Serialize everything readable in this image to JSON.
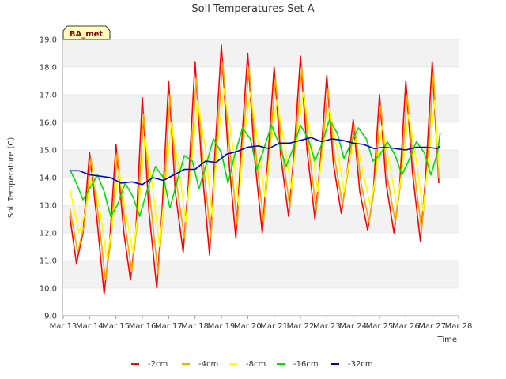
{
  "chart_data": {
    "type": "line",
    "title": "Soil Temperatures Set A",
    "xlabel": "Time",
    "ylabel": "Soil Temperature (C)",
    "ylim": [
      9.0,
      19.0
    ],
    "yticks": [
      "9.0",
      "10.0",
      "11.0",
      "12.0",
      "13.0",
      "14.0",
      "15.0",
      "16.0",
      "17.0",
      "18.0",
      "19.0"
    ],
    "xlim": [
      13,
      28
    ],
    "xticks": [
      "Mar 13",
      "Mar 14",
      "Mar 15",
      "Mar 16",
      "Mar 17",
      "Mar 18",
      "Mar 19",
      "Mar 20",
      "Mar 21",
      "Mar 22",
      "Mar 23",
      "Mar 24",
      "Mar 25",
      "Mar 26",
      "Mar 27",
      "Mar 28"
    ],
    "badge": "BA_met",
    "grid": true,
    "legend_position": "bottom",
    "series": [
      {
        "name": "-2cm",
        "color": "#ff0000",
        "x": [
          13.25,
          13.5,
          13.75,
          14.0,
          14.3,
          14.55,
          14.75,
          15.0,
          15.3,
          15.55,
          15.75,
          16.0,
          16.25,
          16.55,
          16.75,
          17.0,
          17.25,
          17.55,
          17.75,
          18.0,
          18.25,
          18.55,
          18.75,
          19.0,
          19.25,
          19.55,
          19.75,
          20.0,
          20.25,
          20.55,
          20.75,
          21.0,
          21.25,
          21.55,
          21.75,
          22.0,
          22.25,
          22.55,
          22.75,
          23.0,
          23.25,
          23.55,
          23.75,
          24.0,
          24.25,
          24.55,
          24.75,
          25.0,
          25.25,
          25.55,
          25.75,
          26.0,
          26.25,
          26.55,
          26.75,
          27.0,
          27.25
        ],
        "y": [
          12.6,
          10.9,
          12.0,
          14.9,
          12.3,
          9.8,
          11.5,
          15.2,
          12.0,
          10.3,
          12.0,
          16.9,
          12.8,
          10.0,
          12.8,
          17.5,
          13.5,
          11.3,
          13.8,
          18.2,
          14.5,
          11.2,
          14.8,
          18.8,
          15.0,
          11.8,
          15.0,
          18.5,
          14.8,
          12.0,
          14.5,
          18.0,
          14.8,
          12.6,
          14.8,
          18.4,
          15.0,
          12.5,
          14.5,
          17.7,
          14.5,
          12.7,
          14.0,
          16.1,
          13.5,
          12.1,
          13.3,
          17.0,
          13.8,
          12.0,
          13.5,
          17.5,
          14.2,
          11.7,
          14.0,
          18.2,
          13.8
        ]
      },
      {
        "name": "-4cm",
        "color": "#ffa500",
        "x": [
          13.25,
          13.55,
          13.8,
          14.05,
          14.35,
          14.6,
          14.8,
          15.05,
          15.35,
          15.6,
          15.8,
          16.05,
          16.3,
          16.6,
          16.8,
          17.05,
          17.3,
          17.6,
          17.8,
          18.05,
          18.3,
          18.6,
          18.8,
          19.05,
          19.3,
          19.6,
          19.8,
          20.05,
          20.3,
          20.6,
          20.8,
          21.05,
          21.3,
          21.6,
          21.8,
          22.05,
          22.3,
          22.6,
          22.8,
          23.05,
          23.3,
          23.6,
          23.8,
          24.05,
          24.3,
          24.6,
          24.8,
          25.05,
          25.3,
          25.6,
          25.8,
          26.05,
          26.3,
          26.6,
          26.8,
          27.05,
          27.25
        ],
        "y": [
          12.9,
          11.3,
          12.3,
          14.7,
          12.5,
          10.3,
          11.7,
          14.9,
          12.3,
          10.6,
          12.3,
          16.3,
          13.2,
          10.5,
          13.0,
          17.0,
          13.8,
          11.8,
          14.0,
          17.6,
          14.6,
          11.8,
          15.0,
          18.2,
          15.2,
          12.3,
          15.2,
          18.0,
          15.0,
          12.4,
          14.6,
          17.6,
          15.0,
          12.9,
          15.0,
          18.0,
          15.2,
          12.8,
          14.8,
          17.2,
          14.7,
          13.0,
          14.2,
          15.9,
          13.8,
          12.4,
          13.6,
          16.6,
          14.0,
          12.4,
          13.8,
          17.0,
          14.4,
          12.1,
          14.2,
          17.8,
          14.0
        ]
      },
      {
        "name": "-8cm",
        "color": "#ffff00",
        "x": [
          13.25,
          13.6,
          13.85,
          14.1,
          14.4,
          14.65,
          14.85,
          15.1,
          15.4,
          15.65,
          15.85,
          16.1,
          16.4,
          16.65,
          16.85,
          17.1,
          17.4,
          17.65,
          17.85,
          18.1,
          18.4,
          18.65,
          18.85,
          19.1,
          19.4,
          19.65,
          19.85,
          20.1,
          20.4,
          20.65,
          20.85,
          21.1,
          21.4,
          21.65,
          21.85,
          22.1,
          22.4,
          22.65,
          22.85,
          23.1,
          23.4,
          23.65,
          23.85,
          24.1,
          24.4,
          24.65,
          24.85,
          25.1,
          25.4,
          25.65,
          25.85,
          26.1,
          26.4,
          26.65,
          26.85,
          27.1,
          27.25
        ],
        "y": [
          13.6,
          12.0,
          12.8,
          14.2,
          12.8,
          11.1,
          12.2,
          14.3,
          12.6,
          11.3,
          12.8,
          15.5,
          13.6,
          11.5,
          13.5,
          16.0,
          14.2,
          12.4,
          14.4,
          16.8,
          15.0,
          12.6,
          15.2,
          17.2,
          15.4,
          13.0,
          15.4,
          17.1,
          15.2,
          13.3,
          15.0,
          16.8,
          15.2,
          13.6,
          15.2,
          17.1,
          15.4,
          13.5,
          15.0,
          16.5,
          15.0,
          13.5,
          14.6,
          15.4,
          14.1,
          13.0,
          14.0,
          15.9,
          14.4,
          13.0,
          14.2,
          16.3,
          14.6,
          12.8,
          14.6,
          16.8,
          14.4
        ]
      },
      {
        "name": "-16cm",
        "color": "#00e000",
        "x": [
          13.25,
          13.5,
          13.75,
          14.0,
          14.3,
          14.55,
          14.8,
          15.05,
          15.35,
          15.65,
          15.9,
          16.2,
          16.5,
          16.8,
          17.05,
          17.3,
          17.6,
          17.9,
          18.15,
          18.4,
          18.7,
          19.0,
          19.25,
          19.5,
          19.8,
          20.1,
          20.35,
          20.6,
          20.9,
          21.2,
          21.45,
          21.7,
          22.0,
          22.3,
          22.55,
          22.8,
          23.1,
          23.4,
          23.65,
          23.9,
          24.2,
          24.5,
          24.75,
          25.0,
          25.3,
          25.6,
          25.85,
          26.1,
          26.4,
          26.7,
          26.95,
          27.2,
          27.3
        ],
        "y": [
          14.3,
          13.8,
          13.2,
          13.6,
          14.1,
          13.5,
          12.6,
          13.0,
          13.8,
          13.3,
          12.6,
          13.6,
          14.4,
          14.0,
          12.9,
          13.8,
          14.8,
          14.6,
          13.6,
          14.4,
          15.4,
          14.9,
          13.8,
          14.8,
          15.8,
          15.4,
          14.3,
          15.0,
          15.9,
          15.2,
          14.4,
          15.0,
          15.9,
          15.4,
          14.6,
          15.2,
          16.1,
          15.6,
          14.7,
          15.2,
          15.8,
          15.4,
          14.6,
          14.8,
          15.3,
          14.8,
          14.1,
          14.6,
          15.3,
          14.9,
          14.1,
          14.9,
          15.6
        ]
      },
      {
        "name": "-32cm",
        "color": "#0000cc",
        "x": [
          13.25,
          13.6,
          14.0,
          14.4,
          14.8,
          15.2,
          15.6,
          16.0,
          16.4,
          16.8,
          17.2,
          17.6,
          18.0,
          18.4,
          18.8,
          19.2,
          19.6,
          20.0,
          20.4,
          20.8,
          21.2,
          21.6,
          22.0,
          22.4,
          22.8,
          23.2,
          23.6,
          24.0,
          24.4,
          24.8,
          25.2,
          25.6,
          26.0,
          26.4,
          26.8,
          27.2,
          27.3
        ],
        "y": [
          14.25,
          14.25,
          14.1,
          14.05,
          14.0,
          13.8,
          13.85,
          13.75,
          14.0,
          13.9,
          14.1,
          14.3,
          14.3,
          14.6,
          14.55,
          14.85,
          14.95,
          15.1,
          15.15,
          15.05,
          15.25,
          15.25,
          15.35,
          15.45,
          15.3,
          15.4,
          15.35,
          15.25,
          15.2,
          15.05,
          15.1,
          15.05,
          15.0,
          15.1,
          15.1,
          15.05,
          15.15
        ]
      }
    ]
  }
}
